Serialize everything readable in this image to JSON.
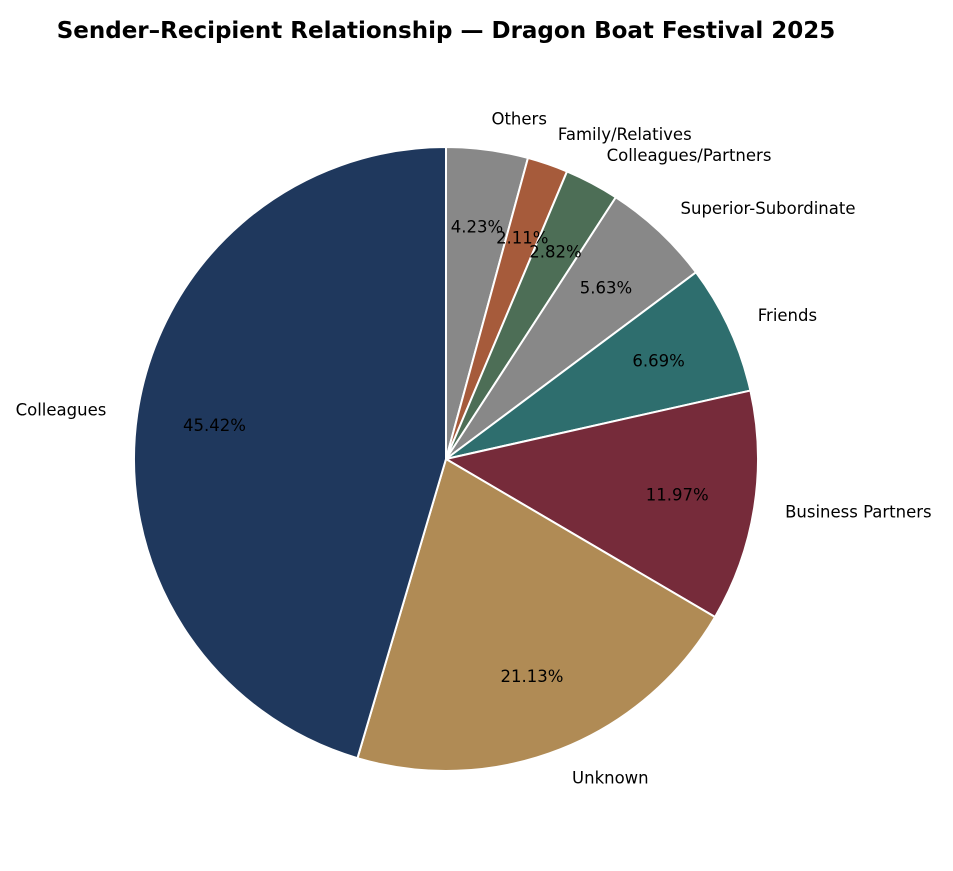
{
  "chart_data": {
    "type": "pie",
    "title": "Sender–Recipient Relationship — Dragon Boat Festival 2025",
    "start_angle_deg": 90,
    "direction": "clockwise",
    "edge_color": "#ffffff",
    "slices": [
      {
        "label": "Others",
        "value": 4.23,
        "pct_label": "4.23%",
        "color": "#888888"
      },
      {
        "label": "Family/Relatives",
        "value": 2.11,
        "pct_label": "2.11%",
        "color": "#a65b3b"
      },
      {
        "label": "Colleagues/Partners",
        "value": 2.82,
        "pct_label": "2.82%",
        "color": "#4d6e56"
      },
      {
        "label": "Superior-Subordinate",
        "value": 5.63,
        "pct_label": "5.63%",
        "color": "#888888"
      },
      {
        "label": "Friends",
        "value": 6.69,
        "pct_label": "6.69%",
        "color": "#2e6e6e"
      },
      {
        "label": "Business Partners",
        "value": 11.97,
        "pct_label": "11.97%",
        "color": "#762b3a"
      },
      {
        "label": "Unknown",
        "value": 21.13,
        "pct_label": "21.13%",
        "color": "#b08b55"
      },
      {
        "label": "Colleagues",
        "value": 45.42,
        "pct_label": "45.42%",
        "color": "#1f385d"
      }
    ]
  }
}
